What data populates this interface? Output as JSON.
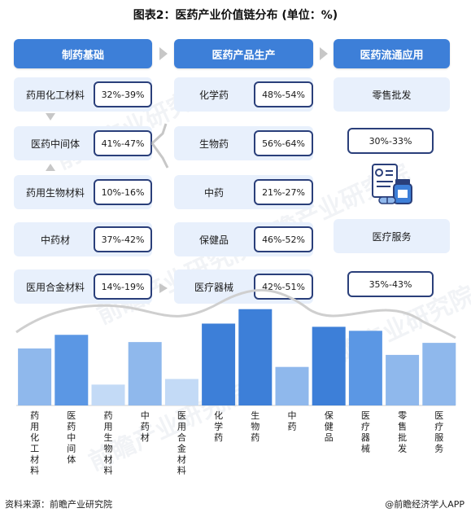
{
  "title": "图表2：医药产业价值链分布 (单位：%)",
  "headers": [
    "制药基础",
    "医药产品生产",
    "医药流通应用"
  ],
  "basics": [
    {
      "label": "药用化工材料",
      "pct": "32%-39%"
    },
    {
      "label": "医药中间体",
      "pct": "41%-47%"
    },
    {
      "label": "药用生物材料",
      "pct": "10%-16%"
    },
    {
      "label": "中药材",
      "pct": "37%-42%"
    },
    {
      "label": "医用合金材料",
      "pct": "14%-19%"
    }
  ],
  "production": [
    {
      "label": "化学药",
      "pct": "48%-54%"
    },
    {
      "label": "生物药",
      "pct": "56%-64%"
    },
    {
      "label": "中药",
      "pct": "21%-27%"
    },
    {
      "label": "保健品",
      "pct": "46%-52%"
    },
    {
      "label": "医疗器械",
      "pct": "42%-51%"
    }
  ],
  "circulation": [
    {
      "label": "零售批发",
      "pct": "30%-33%"
    },
    {
      "label": "医疗服务",
      "pct": "35%-43%"
    }
  ],
  "icons": {
    "arrow": "arrow-right-icon",
    "document": "medical-report-icon"
  },
  "watermark": "前瞻产业研究院",
  "chart_data": {
    "type": "bar",
    "categories": [
      "药用化工材料",
      "医药中间体",
      "药用生物材料",
      "中药材",
      "医用合金材料",
      "化学药",
      "生物药",
      "中药",
      "保健品",
      "医疗器械",
      "零售批发",
      "医疗服务"
    ],
    "series": [
      {
        "values": [
          35.5,
          44,
          13,
          39.5,
          16.5,
          51,
          60,
          24,
          49,
          46.5,
          31.5,
          39
        ]
      }
    ],
    "ylim": [
      0,
      70
    ],
    "colors": [
      "#8fb8ec",
      "#5b97e4",
      "#c3daf6",
      "#8fb8ec",
      "#c3daf6",
      "#3d7fd8",
      "#3d7fd8",
      "#8fb8ec",
      "#3d7fd8",
      "#5b97e4",
      "#8fb8ec",
      "#8fb8ec"
    ]
  },
  "source": "资料来源：前瞻产业研究院",
  "credit": "@前瞻经济学人APP"
}
